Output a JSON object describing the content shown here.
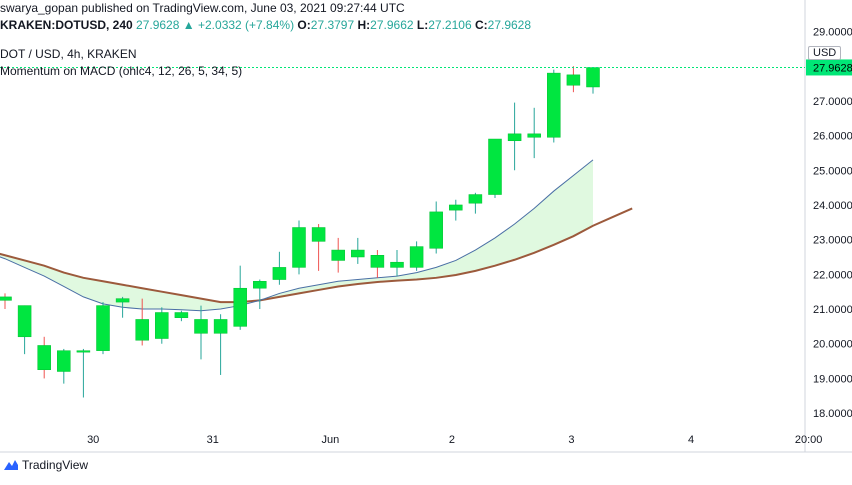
{
  "header": {
    "published_line": "swarya_gopan published on TradingView.com, June 03, 2021 09:27:44 UTC",
    "symbol": "KRAKEN:DOTUSD, 240",
    "last": "27.9628",
    "change": "+2.0332 (+7.84%)",
    "o_label": "O:",
    "o_value": "27.3797",
    "h_label": "H:",
    "h_value": "27.9662",
    "l_label": "L:",
    "l_value": "27.2106",
    "c_label": "C:",
    "c_value": "27.9628"
  },
  "legend": {
    "line1": "DOT / USD, 4h, KRAKEN",
    "line2": "Momentum on MACD (ohlc4, 12, 26, 5, 34, 5)"
  },
  "currency": "USD",
  "brand": "TradingView",
  "colors": {
    "up": "#00e640",
    "down": "#00e640",
    "fast_line": "#4a6fa5",
    "slow_line": "#9c5a3c",
    "fill": "#d8f8d8",
    "price_line": "#00e676"
  },
  "chart_data": {
    "type": "candlestick",
    "ylim": [
      17.6,
      29.1
    ],
    "y_ticks": [
      "29.0000",
      "28.0000",
      "27.0000",
      "26.0000",
      "25.0000",
      "24.0000",
      "23.0000",
      "22.0000",
      "21.0000",
      "20.0000",
      "19.0000",
      "18.0000"
    ],
    "last_price_label": "27.9628",
    "x_ticks": [
      {
        "label": "30",
        "bar": 4.5
      },
      {
        "label": "31",
        "bar": 10.6
      },
      {
        "label": "Jun",
        "bar": 16.6
      },
      {
        "label": "2",
        "bar": 22.8
      },
      {
        "label": "3",
        "bar": 28.9
      },
      {
        "label": "4",
        "bar": 35
      },
      {
        "label": "20:00",
        "bar": 41
      }
    ],
    "candles": [
      {
        "o": 21.35,
        "h": 21.45,
        "l": 21.0,
        "c": 21.25
      },
      {
        "o": 20.2,
        "h": 21.1,
        "l": 19.7,
        "c": 21.1
      },
      {
        "o": 19.95,
        "h": 20.2,
        "l": 19.0,
        "c": 19.25
      },
      {
        "o": 19.2,
        "h": 19.85,
        "l": 18.85,
        "c": 19.8
      },
      {
        "o": 19.8,
        "h": 19.85,
        "l": 18.45,
        "c": 19.8
      },
      {
        "o": 19.8,
        "h": 21.2,
        "l": 19.7,
        "c": 21.1
      },
      {
        "o": 21.2,
        "h": 21.35,
        "l": 20.75,
        "c": 21.3
      },
      {
        "o": 20.7,
        "h": 21.3,
        "l": 19.95,
        "c": 20.1
      },
      {
        "o": 20.15,
        "h": 21.05,
        "l": 20.0,
        "c": 20.9
      },
      {
        "o": 20.75,
        "h": 20.95,
        "l": 20.65,
        "c": 20.9
      },
      {
        "o": 20.3,
        "h": 21.1,
        "l": 19.55,
        "c": 20.7
      },
      {
        "o": 20.3,
        "h": 20.85,
        "l": 19.1,
        "c": 20.7
      },
      {
        "o": 20.5,
        "h": 22.25,
        "l": 20.4,
        "c": 21.6
      },
      {
        "o": 21.6,
        "h": 21.85,
        "l": 21.0,
        "c": 21.8
      },
      {
        "o": 21.85,
        "h": 22.65,
        "l": 21.7,
        "c": 22.2
      },
      {
        "o": 22.2,
        "h": 23.55,
        "l": 22.0,
        "c": 23.35
      },
      {
        "o": 23.35,
        "h": 23.45,
        "l": 22.1,
        "c": 22.95
      },
      {
        "o": 22.7,
        "h": 23.05,
        "l": 22.05,
        "c": 22.4
      },
      {
        "o": 22.5,
        "h": 23.05,
        "l": 22.3,
        "c": 22.7
      },
      {
        "o": 22.55,
        "h": 22.7,
        "l": 21.9,
        "c": 22.2
      },
      {
        "o": 22.2,
        "h": 22.7,
        "l": 21.95,
        "c": 22.35
      },
      {
        "o": 22.2,
        "h": 22.95,
        "l": 22.1,
        "c": 22.8
      },
      {
        "o": 22.75,
        "h": 24.1,
        "l": 22.6,
        "c": 23.8
      },
      {
        "o": 23.85,
        "h": 24.15,
        "l": 23.55,
        "c": 24.0
      },
      {
        "o": 24.05,
        "h": 24.35,
        "l": 23.75,
        "c": 24.3
      },
      {
        "o": 24.3,
        "h": 25.9,
        "l": 24.2,
        "c": 25.9
      },
      {
        "o": 25.85,
        "h": 26.95,
        "l": 25.0,
        "c": 26.05
      },
      {
        "o": 25.95,
        "h": 26.8,
        "l": 25.35,
        "c": 26.05
      },
      {
        "o": 25.95,
        "h": 27.9,
        "l": 25.8,
        "c": 27.8
      },
      {
        "o": 27.75,
        "h": 28.0,
        "l": 27.25,
        "c": 27.45
      },
      {
        "o": 27.4,
        "h": 27.97,
        "l": 27.21,
        "c": 27.96
      }
    ],
    "fast_line": [
      22.65,
      22.45,
      22.2,
      21.95,
      21.65,
      21.35,
      21.15,
      21.05,
      21.0,
      21.0,
      20.98,
      20.95,
      21.0,
      21.1,
      21.25,
      21.45,
      21.6,
      21.7,
      21.8,
      21.85,
      21.9,
      21.95,
      22.05,
      22.2,
      22.4,
      22.7,
      23.05,
      23.45,
      23.9,
      24.4,
      24.85,
      25.3
    ],
    "slow_line": [
      22.7,
      22.55,
      22.4,
      22.25,
      22.05,
      21.9,
      21.8,
      21.7,
      21.6,
      21.5,
      21.4,
      21.3,
      21.2,
      21.2,
      21.25,
      21.35,
      21.45,
      21.55,
      21.65,
      21.72,
      21.78,
      21.82,
      21.85,
      21.9,
      21.98,
      22.1,
      22.25,
      22.42,
      22.62,
      22.85,
      23.1,
      23.4,
      23.65,
      23.9
    ]
  }
}
